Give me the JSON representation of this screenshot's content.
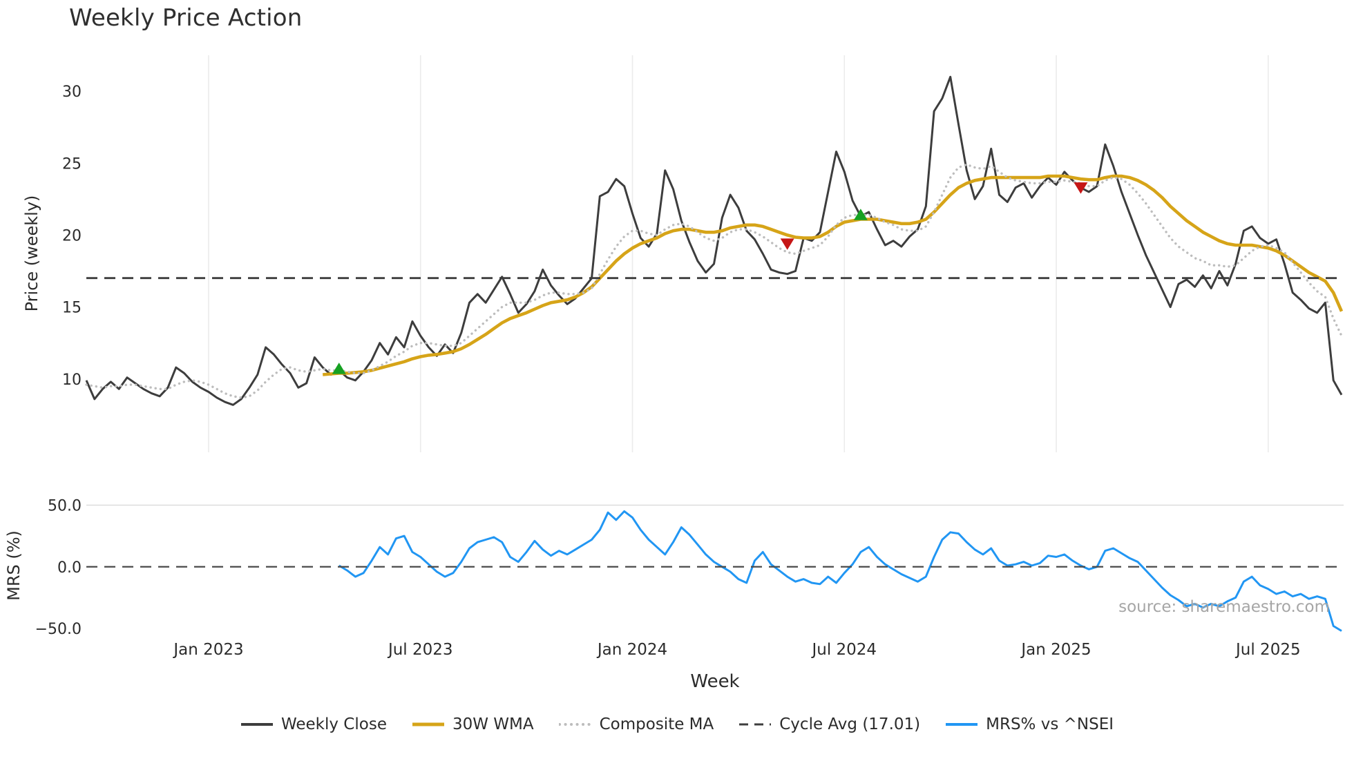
{
  "title": "Weekly Price Action",
  "watermark": "source: sharemaestro.com",
  "style": {
    "background": "#ffffff",
    "grid_color": "#ebebeb",
    "text_color": "#2b2b2b",
    "watermark_color": "#a6a6a6"
  },
  "legend": {
    "items": [
      {
        "label": "Weekly Close",
        "color": "#3d3d3d",
        "style": "solid",
        "width": 4
      },
      {
        "label": "30W WMA",
        "color": "#d6a418",
        "style": "solid",
        "width": 5
      },
      {
        "label": "Composite MA",
        "color": "#bdbdbd",
        "style": "dotted",
        "width": 4
      },
      {
        "label": "Cycle Avg (17.01)",
        "color": "#3d3d3d",
        "style": "dashed",
        "width": 3
      },
      {
        "label": "MRS% vs ^NSEI",
        "color": "#2196f3",
        "style": "solid",
        "width": 4
      }
    ]
  },
  "chart_data": {
    "type": "line",
    "title": "Weekly Price Action",
    "x": {
      "label": "Week",
      "unit": "weekly",
      "n_weeks": 155,
      "ticks": {
        "weeks": [
          15,
          41,
          67,
          93,
          119,
          145
        ],
        "labels": [
          "Jan 2023",
          "Jul 2023",
          "Jan 2024",
          "Jul 2024",
          "Jan 2025",
          "Jul 2025"
        ]
      }
    },
    "panels": [
      {
        "name": "price",
        "ylabel": "Price (weekly)",
        "ylim": [
          4.9,
          32.5
        ],
        "yticks": {
          "values": [
            10,
            15,
            20,
            25,
            30
          ],
          "labels": [
            "10",
            "15",
            "20",
            "25",
            "30"
          ]
        },
        "cycle_avg": 17.01,
        "series": [
          {
            "name": "Weekly Close",
            "style": "solid",
            "color": "#3d3d3d",
            "width": 3,
            "start_week": 0,
            "values": [
              9.9,
              8.6,
              9.3,
              9.8,
              9.3,
              10.1,
              9.7,
              9.3,
              9.0,
              8.8,
              9.4,
              10.8,
              10.4,
              9.8,
              9.4,
              9.1,
              8.7,
              8.4,
              8.2,
              8.6,
              9.4,
              10.3,
              12.2,
              11.7,
              11.0,
              10.4,
              9.4,
              9.7,
              11.5,
              10.8,
              10.3,
              10.6,
              10.1,
              9.9,
              10.5,
              11.3,
              12.5,
              11.7,
              12.9,
              12.2,
              14.0,
              13.0,
              12.2,
              11.6,
              12.4,
              11.8,
              13.2,
              15.3,
              15.9,
              15.3,
              16.2,
              17.1,
              15.9,
              14.6,
              15.2,
              16.1,
              17.6,
              16.5,
              15.8,
              15.2,
              15.6,
              16.3,
              17.0,
              22.7,
              23.0,
              23.9,
              23.4,
              21.5,
              19.8,
              19.2,
              20.1,
              24.5,
              23.2,
              21.0,
              19.5,
              18.2,
              17.4,
              18.0,
              21.2,
              22.8,
              21.9,
              20.3,
              19.7,
              18.7,
              17.6,
              17.4,
              17.3,
              17.5,
              19.8,
              19.6,
              20.2,
              23.0,
              25.8,
              24.4,
              22.4,
              21.3,
              21.6,
              20.4,
              19.3,
              19.6,
              19.2,
              19.9,
              20.4,
              22.0,
              28.6,
              29.5,
              31.0,
              27.7,
              24.5,
              22.5,
              23.4,
              26.0,
              22.8,
              22.3,
              23.3,
              23.6,
              22.6,
              23.4,
              24.0,
              23.5,
              24.4,
              23.8,
              23.3,
              23.0,
              23.4,
              26.3,
              24.8,
              23.0,
              21.5,
              20.0,
              18.6,
              17.4,
              16.2,
              15.0,
              16.6,
              16.9,
              16.4,
              17.2,
              16.3,
              17.5,
              16.5,
              18.0,
              20.3,
              20.6,
              19.8,
              19.4,
              19.7,
              18.0,
              16.0,
              15.5,
              14.9,
              14.6,
              15.3,
              9.9,
              8.9
            ]
          },
          {
            "name": "30W WMA",
            "style": "solid",
            "color": "#d6a418",
            "width": 4.6,
            "start_week": 29,
            "values": [
              10.3,
              10.35,
              10.4,
              10.4,
              10.45,
              10.5,
              10.6,
              10.75,
              10.9,
              11.05,
              11.2,
              11.4,
              11.55,
              11.65,
              11.7,
              11.8,
              11.9,
              12.1,
              12.4,
              12.75,
              13.1,
              13.5,
              13.9,
              14.2,
              14.4,
              14.6,
              14.85,
              15.1,
              15.3,
              15.4,
              15.5,
              15.7,
              16.0,
              16.4,
              17.0,
              17.6,
              18.2,
              18.7,
              19.1,
              19.4,
              19.6,
              19.8,
              20.1,
              20.3,
              20.4,
              20.4,
              20.3,
              20.2,
              20.2,
              20.3,
              20.5,
              20.6,
              20.7,
              20.7,
              20.6,
              20.4,
              20.2,
              20.0,
              19.85,
              19.8,
              19.8,
              19.9,
              20.2,
              20.6,
              20.9,
              21.0,
              21.1,
              21.1,
              21.1,
              21.0,
              20.9,
              20.8,
              20.8,
              20.9,
              21.1,
              21.6,
              22.2,
              22.8,
              23.3,
              23.6,
              23.8,
              23.9,
              24.0,
              24.0,
              24.0,
              24.0,
              24.0,
              24.0,
              24.0,
              24.1,
              24.1,
              24.1,
              24.0,
              23.9,
              23.85,
              23.85,
              24.0,
              24.1,
              24.1,
              24.0,
              23.8,
              23.5,
              23.1,
              22.6,
              22.0,
              21.5,
              21.0,
              20.6,
              20.2,
              19.9,
              19.6,
              19.4,
              19.3,
              19.3,
              19.3,
              19.2,
              19.1,
              18.9,
              18.6,
              18.2,
              17.8,
              17.4,
              17.1,
              16.8,
              16.0,
              14.7
            ]
          },
          {
            "name": "Composite MA",
            "style": "dotted",
            "color": "#bdbdbd",
            "width": 3.4,
            "start_week": 0,
            "values": [
              9.6,
              9.5,
              9.4,
              9.5,
              9.5,
              9.6,
              9.6,
              9.5,
              9.4,
              9.3,
              9.3,
              9.6,
              9.8,
              9.9,
              9.8,
              9.6,
              9.3,
              9.0,
              8.8,
              8.7,
              8.8,
              9.2,
              9.8,
              10.3,
              10.7,
              10.8,
              10.6,
              10.5,
              10.6,
              10.7,
              10.6,
              10.6,
              10.5,
              10.4,
              10.4,
              10.6,
              10.9,
              11.2,
              11.6,
              11.9,
              12.3,
              12.5,
              12.5,
              12.4,
              12.3,
              12.3,
              12.5,
              13.0,
              13.5,
              14.0,
              14.5,
              15.0,
              15.3,
              15.3,
              15.3,
              15.5,
              15.8,
              16.0,
              16.0,
              15.9,
              15.9,
              16.0,
              16.3,
              17.3,
              18.3,
              19.2,
              19.9,
              20.3,
              20.3,
              20.1,
              20.0,
              20.4,
              20.7,
              20.8,
              20.6,
              20.2,
              19.8,
              19.6,
              19.8,
              20.2,
              20.4,
              20.4,
              20.2,
              19.9,
              19.5,
              19.1,
              18.8,
              18.7,
              18.9,
              19.1,
              19.3,
              19.9,
              20.7,
              21.2,
              21.4,
              21.4,
              21.4,
              21.2,
              20.9,
              20.7,
              20.4,
              20.3,
              20.3,
              20.6,
              21.6,
              22.8,
              24.0,
              24.7,
              24.9,
              24.7,
              24.6,
              24.8,
              24.4,
              24.0,
              23.8,
              23.7,
              23.6,
              23.6,
              23.7,
              23.7,
              23.8,
              23.7,
              23.6,
              23.4,
              23.4,
              23.8,
              24.0,
              23.9,
              23.5,
              22.9,
              22.2,
              21.4,
              20.6,
              19.8,
              19.2,
              18.8,
              18.4,
              18.2,
              17.9,
              17.9,
              17.8,
              17.9,
              18.4,
              18.9,
              19.2,
              19.3,
              19.1,
              18.8,
              18.1,
              17.4,
              16.7,
              16.1,
              15.7,
              14.2,
              13.0
            ]
          },
          {
            "name": "Cycle Avg (17.01)",
            "style": "dashed",
            "color": "#3d3d3d",
            "width": 2.8,
            "constant": 17.01
          }
        ],
        "signals": {
          "buy": {
            "color": "#16a122",
            "shape": "triangle-up",
            "points": [
              {
                "week": 31,
                "price": 10.7
              },
              {
                "week": 95,
                "price": 21.4
              }
            ]
          },
          "sell": {
            "color": "#c61616",
            "shape": "triangle-down",
            "points": [
              {
                "week": 86,
                "price": 19.4
              },
              {
                "week": 122,
                "price": 23.3
              }
            ]
          }
        }
      },
      {
        "name": "mrs",
        "ylabel": "MRS (%)",
        "ylim": [
          -55,
          57
        ],
        "yticks": {
          "values": [
            50,
            0,
            -50
          ],
          "labels": [
            "50.0",
            "0.0",
            "−50.0"
          ]
        },
        "series": [
          {
            "name": "MRS% vs ^NSEI",
            "style": "solid",
            "color": "#2196f3",
            "width": 3,
            "start_week": 31,
            "values": [
              1,
              -3,
              -8,
              -5,
              5,
              16,
              10,
              23,
              25,
              12,
              8,
              2,
              -4,
              -8,
              -5,
              4,
              15,
              20,
              22,
              24,
              20,
              8,
              4,
              12,
              21,
              14,
              9,
              13,
              10,
              14,
              18,
              22,
              30,
              44,
              38,
              45,
              40,
              30,
              22,
              16,
              10,
              20,
              32,
              26,
              18,
              10,
              4,
              0,
              -4,
              -10,
              -13,
              5,
              12,
              2,
              -3,
              -8,
              -12,
              -10,
              -13,
              -14,
              -8,
              -13,
              -5,
              2,
              12,
              16,
              8,
              2,
              -2,
              -6,
              -9,
              -12,
              -8,
              8,
              22,
              28,
              27,
              20,
              14,
              10,
              15,
              5,
              1,
              2,
              4,
              1,
              3,
              9,
              8,
              10,
              5,
              1,
              -2,
              0,
              13,
              15,
              11,
              7,
              4,
              -3,
              -10,
              -17,
              -23,
              -27,
              -32,
              -30,
              -33,
              -30,
              -32,
              -28,
              -25,
              -12,
              -8,
              -15,
              -18,
              -22,
              -20,
              -24,
              -22,
              -26,
              -24,
              -26,
              -48,
              -52
            ]
          },
          {
            "name": "Zero Line",
            "style": "dashed",
            "color": "#4a4a4a",
            "width": 2.2,
            "constant": 0
          }
        ]
      }
    ]
  }
}
